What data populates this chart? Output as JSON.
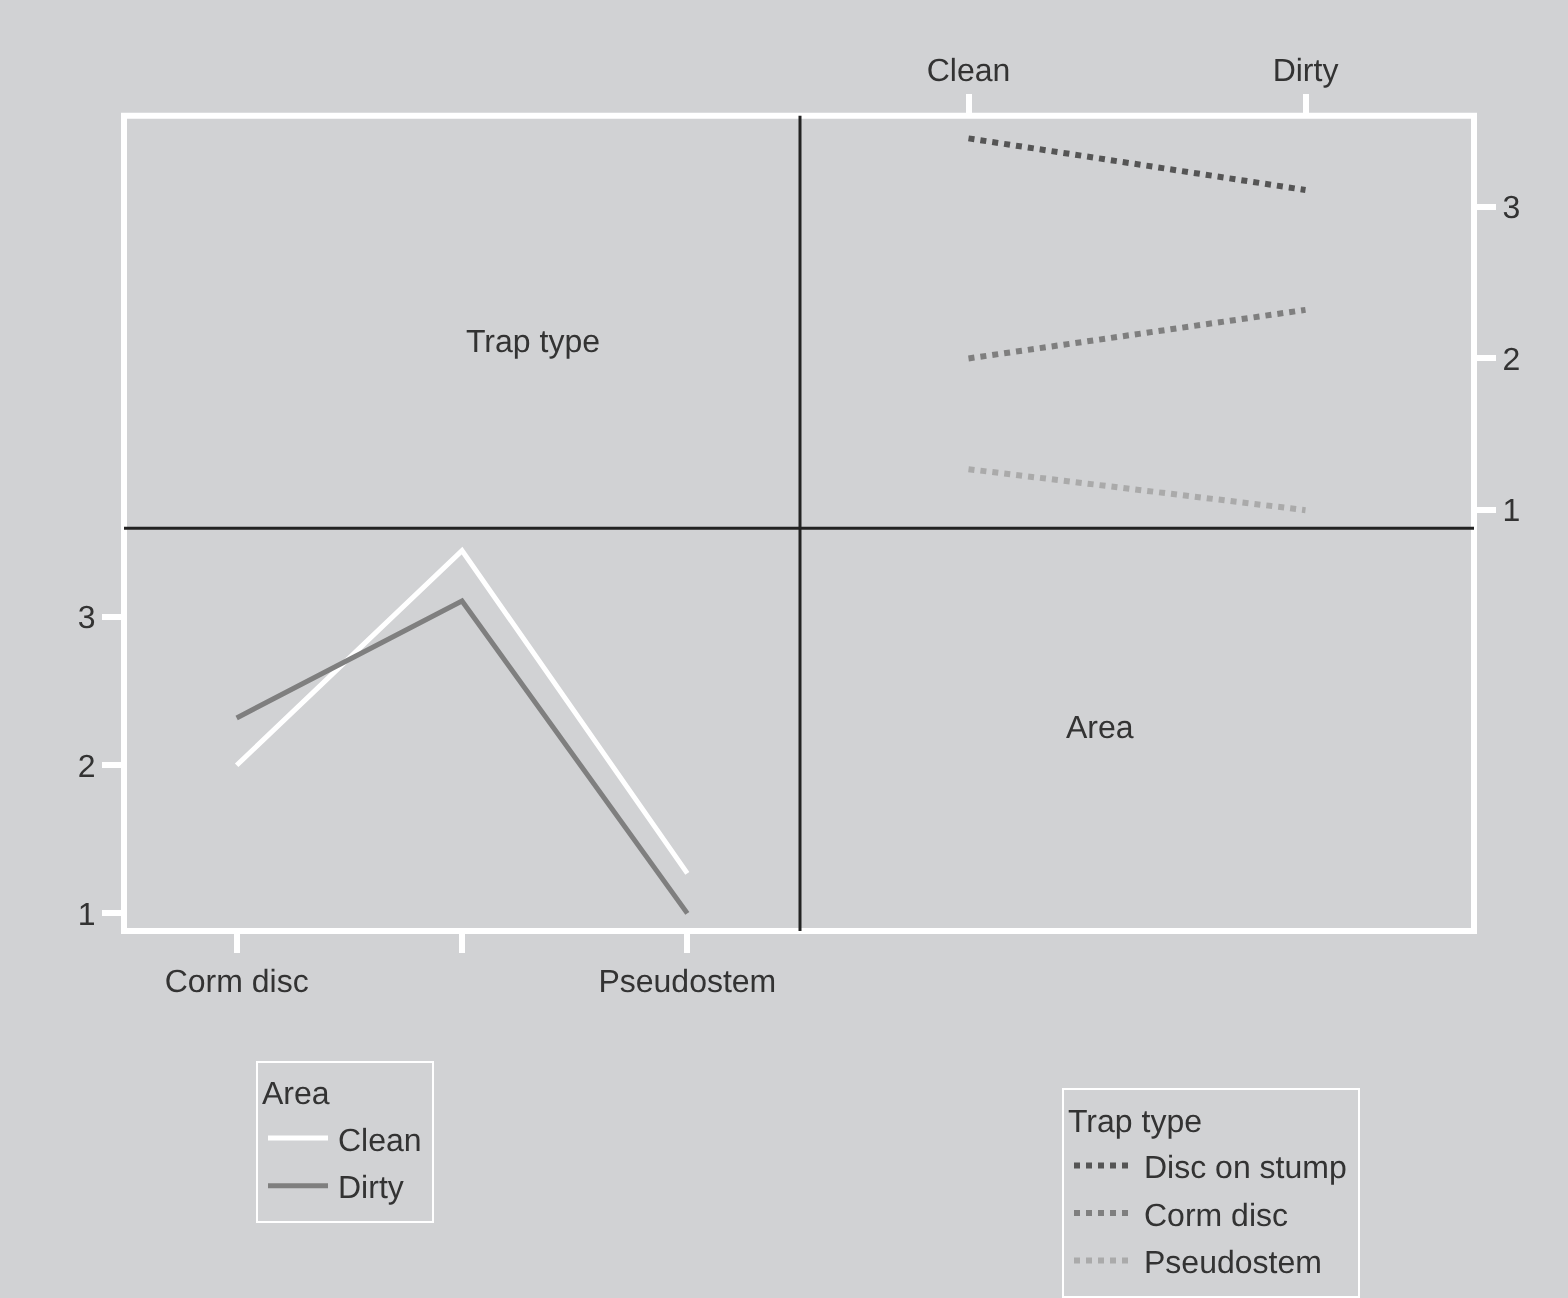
{
  "chart_data": [
    {
      "type": "line",
      "xlabel": "Trap type",
      "categories": [
        "Corm disc",
        null,
        "Pseudostem"
      ],
      "ylim": [
        0.88,
        3.6
      ],
      "yticks": [
        1,
        2,
        3
      ],
      "legend": "bottom",
      "legend_title": "Area",
      "line_style": "solid",
      "series": [
        {
          "name": "Clean",
          "color": "#ffffff",
          "values": [
            2.0,
            3.45,
            1.27
          ]
        },
        {
          "name": "Dirty",
          "color": "#7f7f7f",
          "values": [
            2.32,
            3.11,
            1.0
          ]
        }
      ]
    },
    {
      "type": "line",
      "xlabel": "Area",
      "categories": [
        "Clean",
        "Dirty"
      ],
      "ylim": [
        0.88,
        3.6
      ],
      "yticks": [
        1,
        2,
        3
      ],
      "legend": "bottom",
      "legend_title": "Trap type",
      "line_style": "dotted",
      "series": [
        {
          "name": "Disc on stump",
          "color": "#555555",
          "values": [
            3.45,
            3.11
          ]
        },
        {
          "name": "Corm disc",
          "color": "#7f7f7f",
          "values": [
            2.0,
            2.32
          ]
        },
        {
          "name": "Pseudostem",
          "color": "#aaaaaa",
          "values": [
            1.27,
            1.0
          ]
        }
      ]
    }
  ]
}
